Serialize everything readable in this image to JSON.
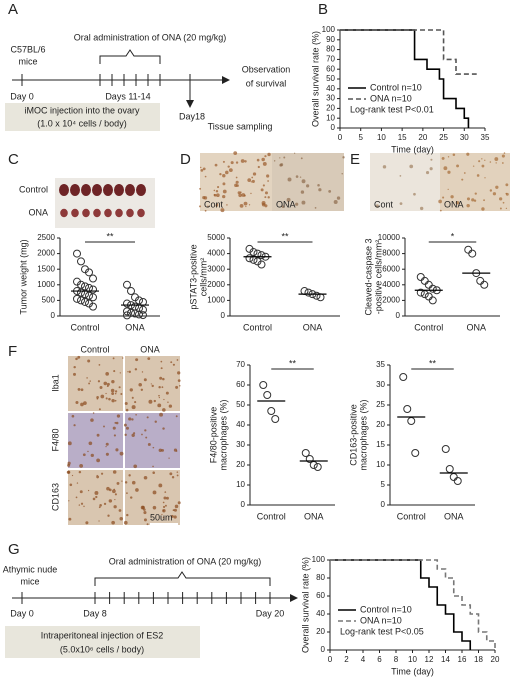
{
  "figure": {
    "labels": [
      "A",
      "B",
      "C",
      "D",
      "E",
      "F",
      "G"
    ],
    "a": {
      "mice": [
        "C57BL/6",
        "mice"
      ],
      "treatment": "Oral administration of ONA (20 mg/kg)",
      "observation": [
        "Observation",
        "of survival"
      ],
      "day0": "Day 0",
      "days": "Days 11-14",
      "day18": "Day18",
      "sampling": "Tissue sampling",
      "injection": [
        "iMOC injection into the ovary",
        "(1.0 x 10⁴ cells / body)"
      ]
    },
    "c": {
      "rows": [
        "Control",
        "ONA"
      ]
    },
    "d": {
      "photo": [
        "Cont",
        "ONA"
      ]
    },
    "e": {
      "photo": [
        "Cont",
        "ONA"
      ]
    },
    "f": {
      "cols": [
        "Control",
        "ONA"
      ],
      "rows": [
        "Iba1",
        "F4/80",
        "CD163"
      ],
      "scale": "50um"
    },
    "g": {
      "mice": [
        "Athymic nude",
        "mice"
      ],
      "treatment": "Oral administration of ONA (20 mg/kg)",
      "day0": "Day 0",
      "day8": "Day 8",
      "day20": "Day 20",
      "injection": [
        "Intraperitoneal injection of ES2",
        "(5.0x10⁶ cells / body)"
      ]
    }
  },
  "chart_data": [
    {
      "type": "survival",
      "ylabel": "Overall survival rate (%)",
      "xlabel": "Time (day)",
      "xlim": [
        0,
        35
      ],
      "xticks": [
        0,
        5,
        10,
        15,
        20,
        25,
        30,
        35
      ],
      "ylim": [
        0,
        100
      ],
      "yticks": [
        0,
        10,
        20,
        30,
        40,
        50,
        60,
        70,
        80,
        90,
        100
      ],
      "legend": "lower-left",
      "annotation": "Log-rank test P<0.01",
      "series": [
        {
          "name": "Control n=10",
          "color": "#000000",
          "line_style": "solid",
          "x": [
            0,
            18,
            21,
            24,
            25,
            28,
            30,
            31
          ],
          "values": [
            100,
            70,
            60,
            50,
            30,
            20,
            10,
            0
          ]
        },
        {
          "name": "ONA n=10",
          "color": "#555555",
          "line_style": "dashed",
          "x": [
            0,
            25,
            28,
            33
          ],
          "values": [
            100,
            70,
            55,
            55
          ]
        }
      ]
    },
    {
      "type": "dot",
      "ylabel": [
        "Tumor weight (mg)"
      ],
      "categories": [
        "Control",
        "ONA"
      ],
      "ylim": [
        0,
        2500
      ],
      "yticks": [
        0,
        500,
        1000,
        1500,
        2000,
        2500
      ],
      "significance": "**",
      "points": [
        [
          2000,
          1750,
          1500,
          1400,
          1200,
          1100,
          1000,
          950,
          900,
          850,
          800,
          750,
          700,
          650,
          600,
          550,
          500,
          450,
          400,
          300
        ],
        [
          1000,
          800,
          600,
          500,
          450,
          400,
          350,
          300,
          250,
          200,
          150,
          100,
          80,
          50,
          30,
          20
        ]
      ],
      "means": [
        800,
        350
      ]
    },
    {
      "type": "dot",
      "ylabel": [
        "pSTAT3-positive",
        "cells/mm²"
      ],
      "categories": [
        "Control",
        "ONA"
      ],
      "ylim": [
        0,
        5000
      ],
      "yticks": [
        0,
        1000,
        2000,
        3000,
        4000,
        5000
      ],
      "significance": "**",
      "points": [
        [
          4300,
          4100,
          4000,
          3900,
          3800,
          3700,
          3600,
          3500,
          3300
        ],
        [
          1600,
          1500,
          1400,
          1300,
          1200
        ]
      ],
      "means": [
        3800,
        1400
      ]
    },
    {
      "type": "dot",
      "ylabel": [
        "Cleaved-caspase 3",
        "-positive cells/mm²"
      ],
      "categories": [
        "Control",
        "ONA"
      ],
      "ylim": [
        0,
        10000
      ],
      "yticks": [
        0,
        2000,
        4000,
        6000,
        8000,
        10000
      ],
      "significance": "*",
      "points": [
        [
          5000,
          4500,
          4000,
          3500,
          3300,
          3000,
          2800,
          2500,
          2000
        ],
        [
          8500,
          8000,
          5500,
          4500,
          4000
        ]
      ],
      "means": [
        3300,
        5500
      ]
    },
    {
      "type": "dot",
      "ylabel": [
        "F4/80-positive",
        "macrophages (%)"
      ],
      "categories": [
        "Control",
        "ONA"
      ],
      "ylim": [
        0,
        70
      ],
      "yticks": [
        0,
        10,
        20,
        30,
        40,
        50,
        60,
        70
      ],
      "significance": "**",
      "points": [
        [
          60,
          55,
          47,
          43
        ],
        [
          26,
          23,
          20,
          19
        ]
      ],
      "means": [
        52,
        22
      ]
    },
    {
      "type": "dot",
      "ylabel": [
        "CD163-positive",
        "macrophages (%)"
      ],
      "categories": [
        "Control",
        "ONA"
      ],
      "ylim": [
        0,
        35
      ],
      "yticks": [
        0,
        5,
        10,
        15,
        20,
        25,
        30,
        35
      ],
      "significance": "**",
      "points": [
        [
          32,
          24,
          21,
          13
        ],
        [
          14,
          9,
          7,
          6
        ]
      ],
      "means": [
        22,
        8
      ]
    },
    {
      "type": "survival",
      "ylabel": "Overall survival rate (%)",
      "xlabel": "Time (day)",
      "xlim": [
        0,
        20
      ],
      "xticks": [
        0,
        2,
        4,
        6,
        8,
        10,
        12,
        14,
        16,
        18,
        20
      ],
      "ylim": [
        0,
        100
      ],
      "yticks": [
        0,
        20,
        40,
        60,
        80,
        100
      ],
      "legend": "lower-left",
      "annotation": "Log-rank test P<0.05",
      "series": [
        {
          "name": "Control n=10",
          "color": "#000000",
          "line_style": "solid",
          "x": [
            0,
            11,
            12,
            13,
            14,
            15,
            16,
            17
          ],
          "values": [
            100,
            80,
            70,
            50,
            40,
            20,
            10,
            0
          ]
        },
        {
          "name": "ONA n=10",
          "color": "#777777",
          "line_style": "dashed",
          "x": [
            0,
            13,
            14,
            15,
            16,
            17,
            18,
            19,
            20
          ],
          "values": [
            100,
            90,
            80,
            60,
            50,
            40,
            20,
            10,
            0
          ]
        }
      ]
    }
  ]
}
